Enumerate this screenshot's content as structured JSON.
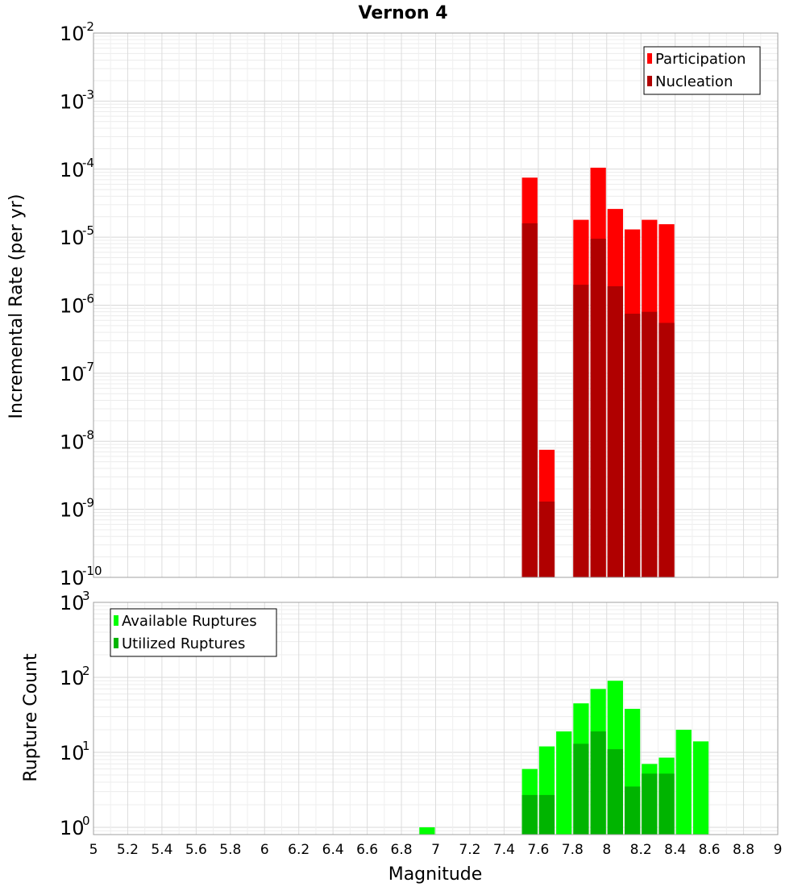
{
  "chart_data": {
    "title": "Vernon 4",
    "xlabel": "Magnitude",
    "xlim": [
      5,
      9
    ],
    "xticks": [
      "5",
      "5.2",
      "5.4",
      "5.6",
      "5.8",
      "6",
      "6.2",
      "6.4",
      "6.6",
      "6.8",
      "7",
      "7.2",
      "7.4",
      "7.6",
      "7.8",
      "8",
      "8.2",
      "8.4",
      "8.6",
      "8.8",
      "9"
    ],
    "bin_width": 0.1,
    "panels": [
      {
        "type": "bar",
        "yscale": "log",
        "ylabel": "Incremental Rate (per yr)",
        "ylim_exp": [
          -10,
          -2
        ],
        "yticks": [
          {
            "base": "10",
            "exp": "-2"
          },
          {
            "base": "10",
            "exp": "-3"
          },
          {
            "base": "10",
            "exp": "-4"
          },
          {
            "base": "10",
            "exp": "-5"
          },
          {
            "base": "10",
            "exp": "-6"
          },
          {
            "base": "10",
            "exp": "-7"
          },
          {
            "base": "10",
            "exp": "-8"
          },
          {
            "base": "10",
            "exp": "-9"
          },
          {
            "base": "10",
            "exp": "-10"
          }
        ],
        "legend": [
          "Participation",
          "Nucleation"
        ],
        "legend_position": "top-right",
        "series": [
          {
            "name": "Participation",
            "color": "#ff0000",
            "x": [
              7.55,
              7.65,
              7.85,
              7.95,
              8.05,
              8.15,
              8.25,
              8.35
            ],
            "values": [
              7.5e-05,
              7.5e-09,
              1.8e-05,
              0.000105,
              2.6e-05,
              1.3e-05,
              1.8e-05,
              1.55e-05
            ]
          },
          {
            "name": "Nucleation",
            "color": "#b00000",
            "x": [
              7.55,
              7.65,
              7.85,
              7.95,
              8.05,
              8.15,
              8.25,
              8.35
            ],
            "values": [
              1.6e-05,
              1.3e-09,
              2e-06,
              9.5e-06,
              1.9e-06,
              7.5e-07,
              8e-07,
              5.5e-07
            ]
          }
        ]
      },
      {
        "type": "bar",
        "yscale": "log",
        "ylabel": "Rupture Count",
        "ylim": [
          0.8,
          1000
        ],
        "yticks": [
          {
            "base": "10",
            "exp": "3"
          },
          {
            "base": "10",
            "exp": "2"
          },
          {
            "base": "10",
            "exp": "1"
          },
          {
            "base": "10",
            "exp": "0"
          }
        ],
        "legend": [
          "Available Ruptures",
          "Utilized Ruptures"
        ],
        "legend_position": "top-left",
        "series": [
          {
            "name": "Available Ruptures",
            "color": "#00ff00",
            "x": [
              6.95,
              7.55,
              7.65,
              7.75,
              7.85,
              7.95,
              8.05,
              8.15,
              8.25,
              8.35,
              8.45,
              8.55
            ],
            "values": [
              1,
              6,
              12,
              19,
              45,
              70,
              90,
              38,
              7,
              8.5,
              20,
              14
            ]
          },
          {
            "name": "Utilized Ruptures",
            "color": "#00b400",
            "x": [
              7.55,
              7.65,
              7.85,
              7.95,
              8.05,
              8.15,
              8.25,
              8.35
            ],
            "values": [
              2.7,
              2.7,
              13,
              19,
              11,
              3.5,
              5.2,
              5.2
            ]
          }
        ]
      }
    ]
  }
}
